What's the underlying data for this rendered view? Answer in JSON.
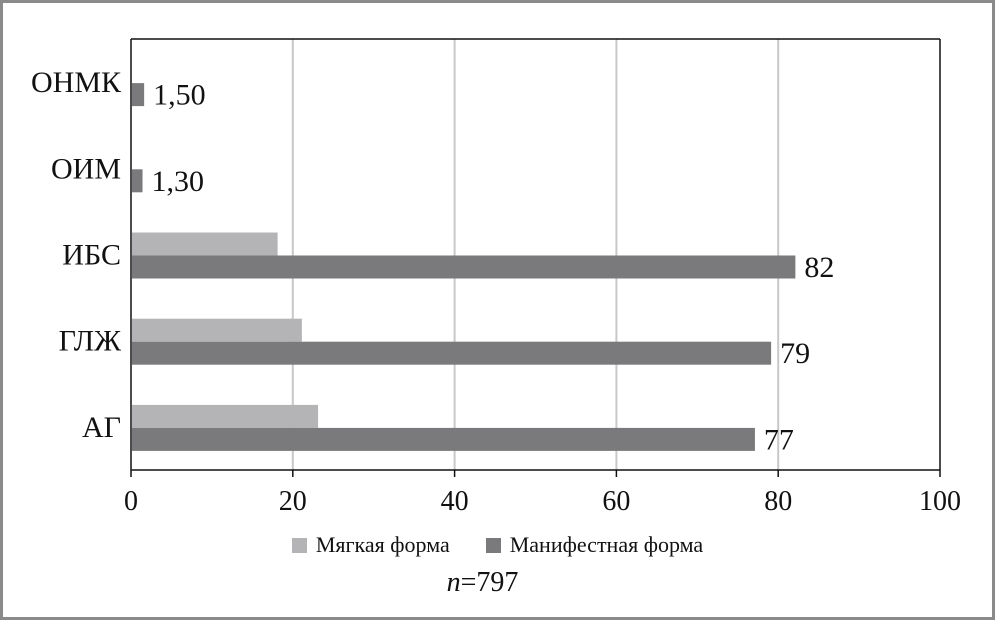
{
  "colors": {
    "soft_form": "#b4b4b6",
    "manifest_form": "#7a7a7d",
    "grid": "#c8c8c8",
    "axis": "#111111"
  },
  "note": {
    "prefix": "n",
    "text": "=797"
  },
  "chart_data": {
    "type": "bar",
    "orientation": "horizontal",
    "categories": [
      "АГ",
      "ГЛЖ",
      "ИБС",
      "ОИМ",
      "ОНМК"
    ],
    "series": [
      {
        "name": "Мягкая форма",
        "values": [
          23,
          21,
          18,
          null,
          null
        ],
        "data_labels": [
          null,
          null,
          null,
          null,
          null
        ]
      },
      {
        "name": "Манифестная форма",
        "values": [
          77,
          79,
          82,
          1.3,
          1.5
        ],
        "data_labels": [
          "77",
          "79",
          "82",
          "1,30",
          "1,50"
        ]
      }
    ],
    "xlim": [
      0,
      100
    ],
    "xticks": [
      "0",
      "20",
      "40",
      "60",
      "80",
      "100"
    ],
    "xlabel": "",
    "ylabel": "",
    "title": "",
    "grid": true,
    "legend_position": "bottom"
  }
}
